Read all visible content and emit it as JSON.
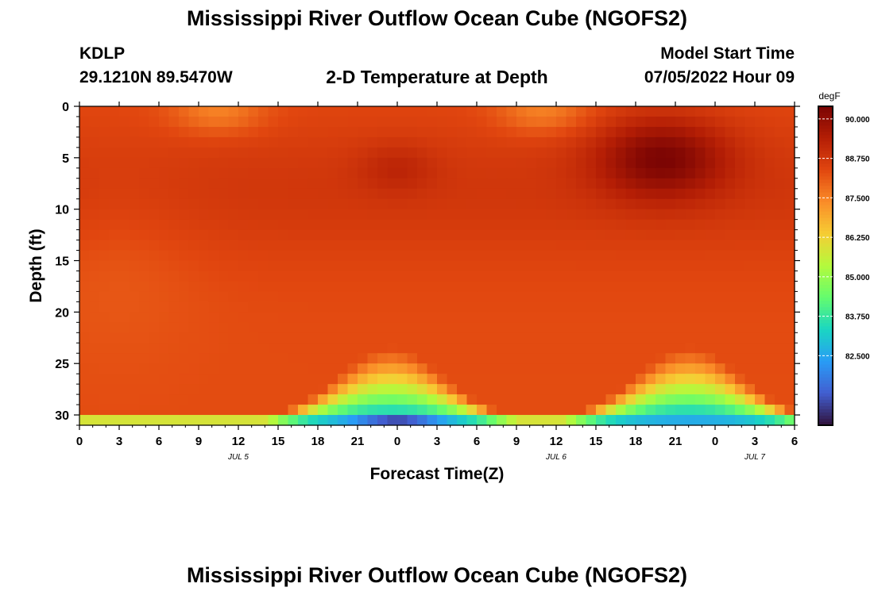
{
  "header": {
    "title": "Mississippi River Outflow Ocean Cube (NGOFS2)",
    "station_id": "KDLP",
    "coordinates": "29.1210N  89.5470W",
    "plot_title": "2-D Temperature at Depth",
    "model_start_label": "Model Start Time",
    "model_start_value": "07/05/2022 Hour 09"
  },
  "footer": {
    "title": "Mississippi River Outflow Ocean Cube (NGOFS2)"
  },
  "chart_data": {
    "type": "heatmap",
    "title": "2-D Temperature at Depth",
    "xlabel": "Forecast Time(Z)",
    "ylabel": "Depth (ft)",
    "x_ticks": [
      "0",
      "3",
      "6",
      "9",
      "12",
      "15",
      "18",
      "21",
      "0",
      "3",
      "6",
      "9",
      "12",
      "15",
      "18",
      "21",
      "0",
      "3",
      "6"
    ],
    "x_range_hours": [
      0,
      54
    ],
    "y_ticks": [
      "0",
      "5",
      "10",
      "15",
      "20",
      "25",
      "30"
    ],
    "y_range_ft": [
      0,
      31
    ],
    "date_labels": [
      {
        "text": "JUL 5",
        "hour": 12
      },
      {
        "text": "JUL 6",
        "hour": 36
      },
      {
        "text": "JUL 7",
        "hour": 51
      }
    ],
    "colorbar": {
      "unit": "degF",
      "range": [
        80.3,
        90.4
      ],
      "tick_values": [
        82.5,
        83.75,
        85.0,
        86.25,
        87.5,
        88.75,
        90.0
      ],
      "tick_labels": [
        "82.500",
        "83.750",
        "85.000",
        "86.250",
        "87.500",
        "88.750",
        "90.000"
      ]
    },
    "grid_note": "temperature field, depth 0-31 ft vs forecast hour 0-54, ~88 degF in upper water column, warmest ~90.2 degF near hour 40-48 at 5 ft, cooling to ~81 degF near 31 ft"
  }
}
